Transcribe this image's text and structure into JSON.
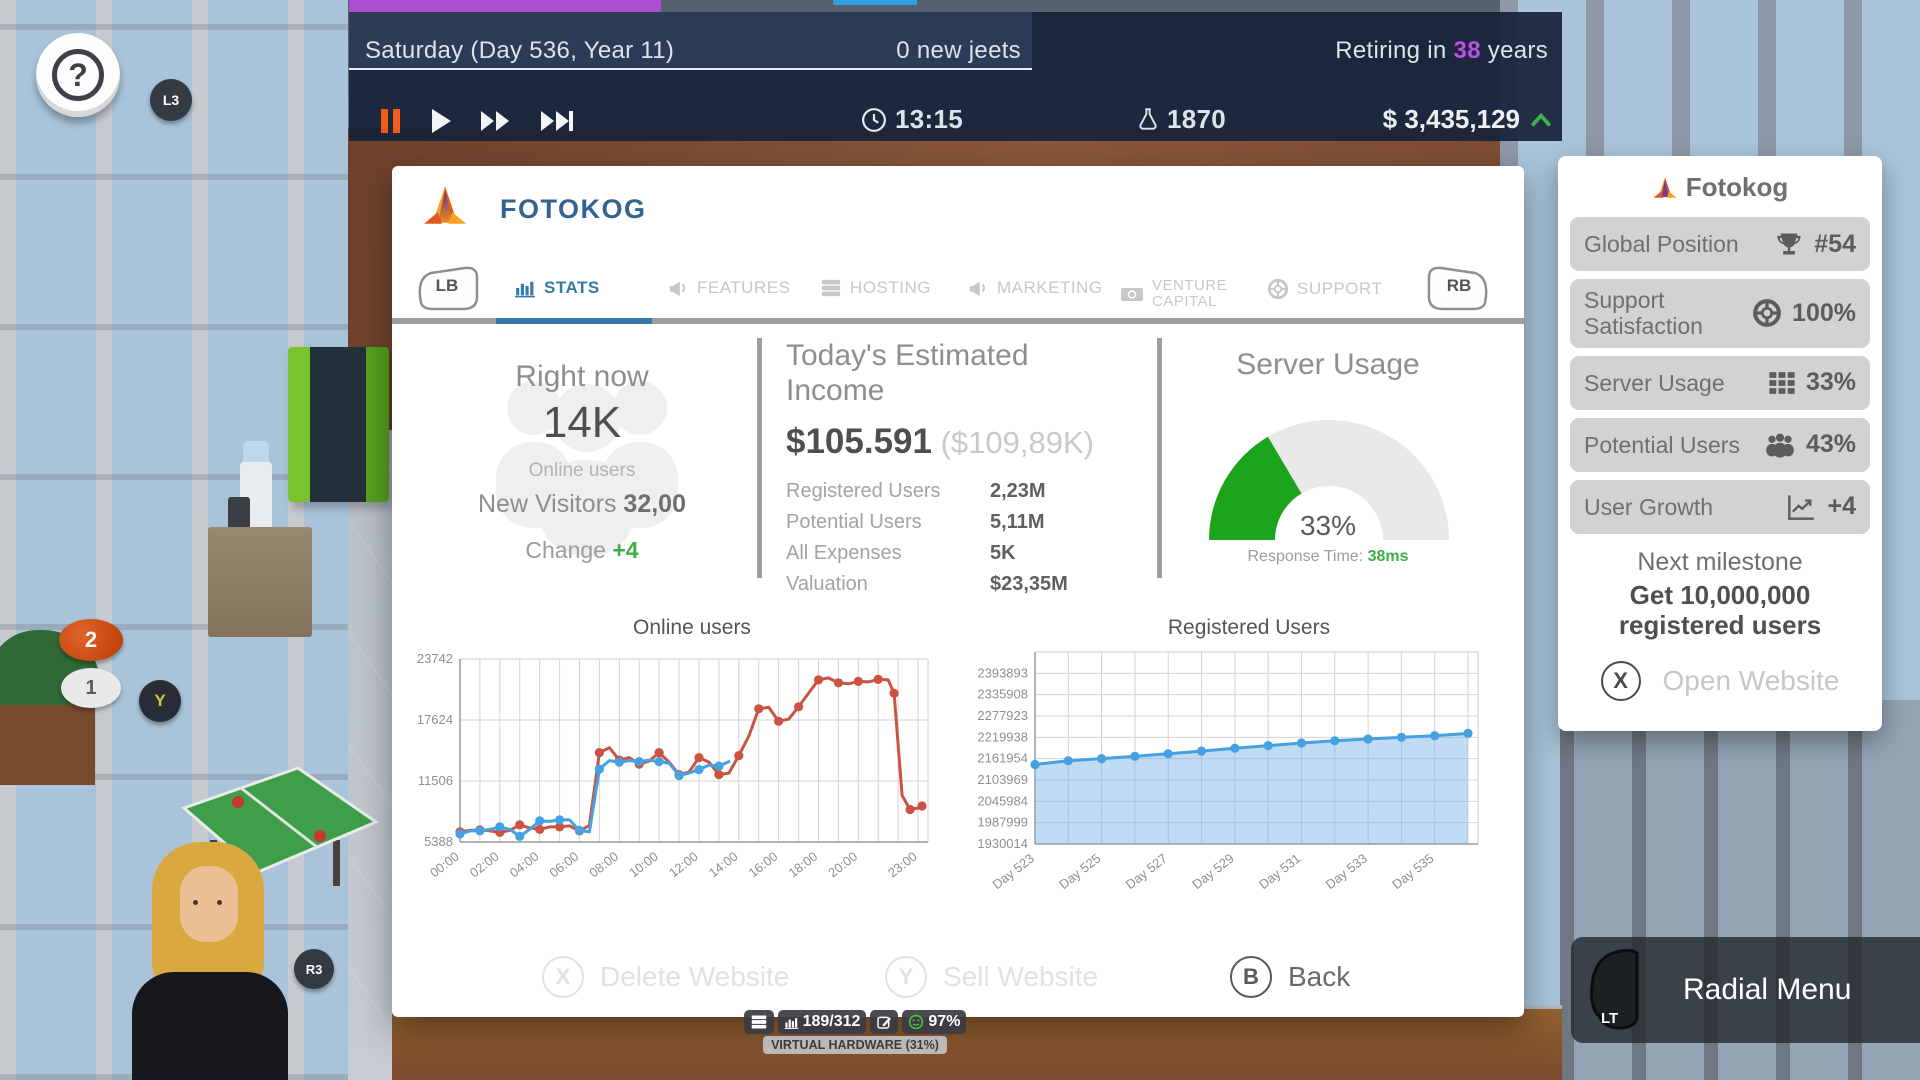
{
  "top_bar": {
    "date": "Saturday (Day 536, Year 11)",
    "new_items": "0 new jeets",
    "retiring_prefix": "Retiring in ",
    "retiring_value": "38",
    "retiring_suffix": " years",
    "time": "13:15",
    "research_points": "1870",
    "money": "$ 3,435,129"
  },
  "hud": {
    "help_label": "?",
    "l3_label": "L3",
    "badge_2": "2",
    "badge_1": "1",
    "badge_y": "Y",
    "r3_label": "R3"
  },
  "website_dialog": {
    "title": "FOTOKOG",
    "bumpers": {
      "left": "LB",
      "right": "RB"
    },
    "tabs": [
      {
        "label": "STATS",
        "active": true
      },
      {
        "label": "FEATURES",
        "active": false
      },
      {
        "label": "HOSTING",
        "active": false
      },
      {
        "label": "MARKETING",
        "active": false
      },
      {
        "label": "VENTURE CAPITAL",
        "active": false
      },
      {
        "label": "SUPPORT",
        "active": false
      }
    ],
    "right_now": {
      "title": "Right now",
      "value": "14K",
      "subtitle": "Online users",
      "visitors_label": "New Visitors ",
      "visitors_value": "32,00",
      "change_label": "Change ",
      "change_value": "+4"
    },
    "income": {
      "title": "Today's Estimated Income",
      "amount": "$105.591",
      "amount_alt": " ($109,89K)",
      "rows": [
        {
          "label": "Registered Users",
          "value": "2,23M"
        },
        {
          "label": "Potential Users",
          "value": "5,11M"
        },
        {
          "label": "All Expenses",
          "value": "5K"
        },
        {
          "label": "Valuation",
          "value": "$23,35M"
        }
      ]
    },
    "server_usage": {
      "title": "Server Usage",
      "percent": 33,
      "percent_label": "33%",
      "response_label": "Response Time: ",
      "response_value": "38ms"
    },
    "actions": [
      {
        "button": "X",
        "label": "Delete Website",
        "enabled": false
      },
      {
        "button": "Y",
        "label": "Sell Website",
        "enabled": false
      },
      {
        "button": "B",
        "label": "Back",
        "enabled": true
      }
    ]
  },
  "chart_data": [
    {
      "type": "line",
      "title": "Online users",
      "xlim": [
        0,
        23.5
      ],
      "ylim": [
        5388,
        23742
      ],
      "y_ticks": [
        5388,
        11506,
        17624,
        23742
      ],
      "x_tick_positions": [
        0,
        2,
        4,
        6,
        8,
        10,
        12,
        14,
        16,
        18,
        20,
        23
      ],
      "x_tick_labels": [
        "00:00",
        "02:00",
        "04:00",
        "06:00",
        "08:00",
        "10:00",
        "12:00",
        "14:00",
        "16:00",
        "18:00",
        "20:00",
        "23:00"
      ],
      "grid": true,
      "series": [
        {
          "name": "previous-day",
          "color": "#cb5342",
          "marker_every": 2,
          "points": [
            [
              0,
              6400
            ],
            [
              0.5,
              6550
            ],
            [
              1,
              6600
            ],
            [
              1.5,
              6500
            ],
            [
              2,
              6350
            ],
            [
              2.5,
              6550
            ],
            [
              3,
              7100
            ],
            [
              3.5,
              6800
            ],
            [
              4,
              6650
            ],
            [
              4.5,
              6900
            ],
            [
              5,
              6900
            ],
            [
              5.5,
              7000
            ],
            [
              6,
              6500
            ],
            [
              6.5,
              7050
            ],
            [
              7,
              14350
            ],
            [
              7.5,
              14850
            ],
            [
              8,
              13600
            ],
            [
              8.5,
              13850
            ],
            [
              9,
              13200
            ],
            [
              9.5,
              13500
            ],
            [
              10,
              14350
            ],
            [
              10.5,
              13400
            ],
            [
              11,
              12150
            ],
            [
              11.5,
              12400
            ],
            [
              12,
              13850
            ],
            [
              12.5,
              13400
            ],
            [
              13,
              12150
            ],
            [
              13.5,
              12300
            ],
            [
              14,
              14050
            ],
            [
              14.5,
              16000
            ],
            [
              15,
              18750
            ],
            [
              15.5,
              18900
            ],
            [
              16,
              17500
            ],
            [
              16.5,
              17700
            ],
            [
              17,
              18950
            ],
            [
              17.5,
              20300
            ],
            [
              18,
              21650
            ],
            [
              18.5,
              21850
            ],
            [
              19,
              21350
            ],
            [
              19.5,
              21250
            ],
            [
              20,
              21500
            ],
            [
              20.5,
              21450
            ],
            [
              21,
              21700
            ],
            [
              21.5,
              21650
            ],
            [
              21.8,
              20300
            ],
            [
              22.2,
              10050
            ],
            [
              22.6,
              8650
            ],
            [
              23,
              8800
            ],
            [
              23.2,
              9000
            ]
          ]
        },
        {
          "name": "today",
          "color": "#45a1e0",
          "marker_every": 2,
          "points": [
            [
              0,
              6200
            ],
            [
              0.5,
              6500
            ],
            [
              1,
              6500
            ],
            [
              1.5,
              6650
            ],
            [
              2,
              6900
            ],
            [
              2.5,
              6650
            ],
            [
              3,
              5950
            ],
            [
              3.5,
              6650
            ],
            [
              4,
              7500
            ],
            [
              4.5,
              7450
            ],
            [
              5,
              7600
            ],
            [
              5.5,
              7600
            ],
            [
              6,
              6550
            ],
            [
              6.5,
              6400
            ],
            [
              7,
              12700
            ],
            [
              7.5,
              13550
            ],
            [
              8,
              13400
            ],
            [
              8.5,
              13550
            ],
            [
              9,
              13450
            ],
            [
              9.5,
              13600
            ],
            [
              10,
              13450
            ],
            [
              10.5,
              13300
            ],
            [
              11,
              12050
            ],
            [
              11.5,
              12300
            ],
            [
              12,
              12650
            ],
            [
              12.5,
              13100
            ],
            [
              13,
              13000
            ],
            [
              13.5,
              13450
            ]
          ]
        }
      ]
    },
    {
      "type": "area",
      "title": "Registered Users",
      "xlim": [
        523,
        536.3
      ],
      "ylim": [
        1930014,
        2451878
      ],
      "y_ticks": [
        1930014,
        1987999,
        2045984,
        2103969,
        2161954,
        2219938,
        2277923,
        2335908,
        2393893
      ],
      "x_tick_positions": [
        523,
        525,
        527,
        529,
        531,
        533,
        535
      ],
      "x_tick_labels": [
        "Day 523",
        "Day 525",
        "Day 527",
        "Day 529",
        "Day 531",
        "Day 533",
        "Day 535"
      ],
      "grid": true,
      "series": [
        {
          "name": "registered-users",
          "color": "#45a1e0",
          "fill": "rgba(116,178,231,0.45)",
          "marker_every": 1,
          "points": [
            [
              523,
              2146000
            ],
            [
              524,
              2156500
            ],
            [
              525,
              2162000
            ],
            [
              526,
              2168500
            ],
            [
              527,
              2175500
            ],
            [
              528,
              2182500
            ],
            [
              529,
              2190500
            ],
            [
              530,
              2197500
            ],
            [
              531,
              2204500
            ],
            [
              532,
              2210500
            ],
            [
              533,
              2215500
            ],
            [
              534,
              2220000
            ],
            [
              535,
              2224500
            ],
            [
              536,
              2230500
            ]
          ]
        }
      ]
    }
  ],
  "side_panel": {
    "title": "Fotokog",
    "stats": [
      {
        "label": "Global Position",
        "icon": "trophy-icon",
        "value": "#54"
      },
      {
        "label": "Support Satisfaction",
        "icon": "lifebuoy-icon",
        "value": "100%"
      },
      {
        "label": "Server Usage",
        "icon": "grid-icon",
        "value": "33%"
      },
      {
        "label": "Potential Users",
        "icon": "people-icon",
        "value": "43%"
      },
      {
        "label": "User Growth",
        "icon": "growth-icon",
        "value": "+4"
      }
    ],
    "milestone_title": "Next milestone",
    "milestone_text": "Get 10,000,000 registered users",
    "open_button": "X",
    "open_label": "Open Website"
  },
  "hardware_badge": {
    "capacity": "189/312",
    "satisfaction": "97%",
    "label": "VIRTUAL HARDWARE (31%)"
  },
  "radial_menu": {
    "trigger": "LT",
    "label": "Radial Menu"
  }
}
